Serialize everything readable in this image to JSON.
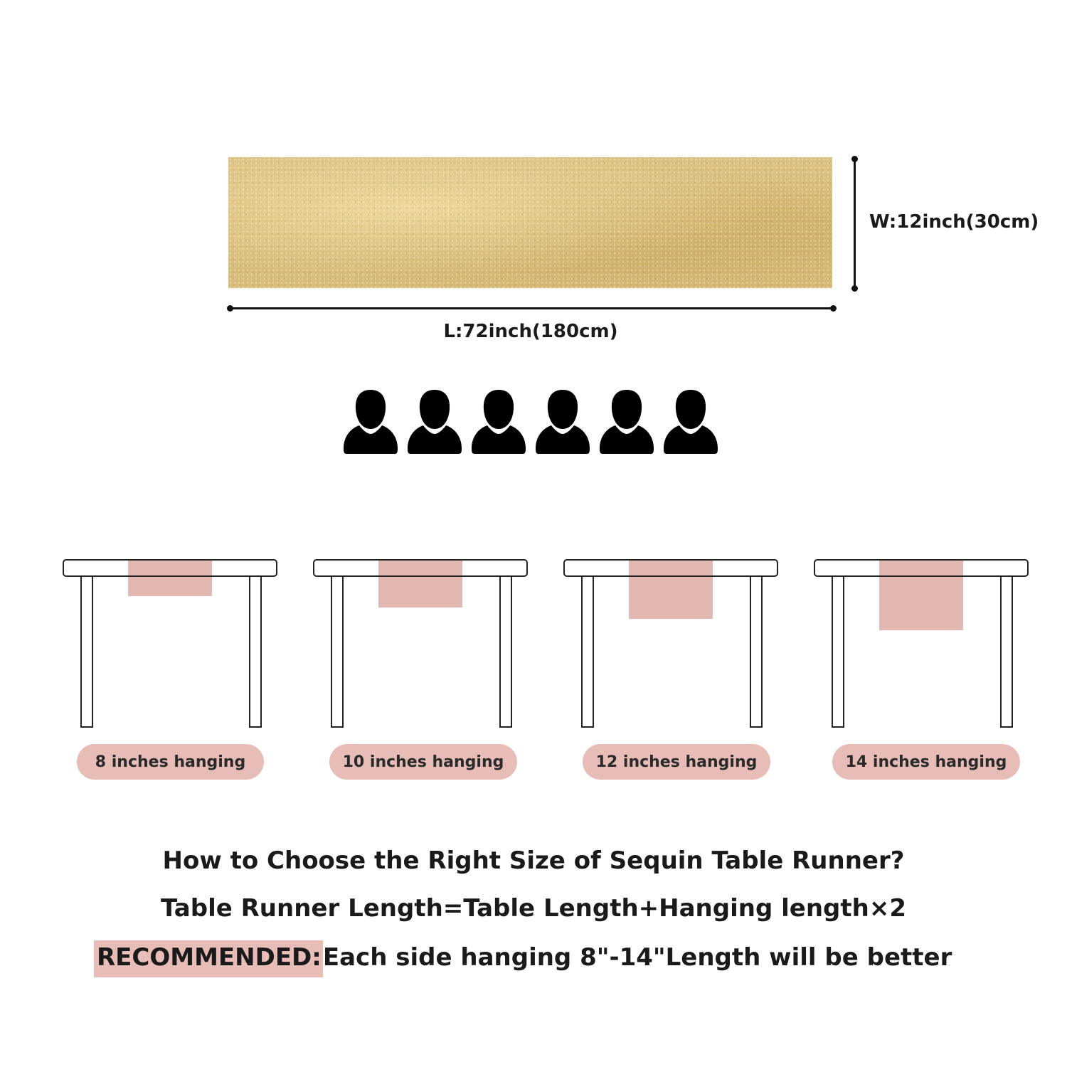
{
  "product": {
    "width_label": "W:12inch(30cm)",
    "length_label": "L:72inch(180cm)",
    "runner_color": "#d8bb78",
    "seats": 6
  },
  "hanging_options": [
    {
      "label": "8 inches hanging",
      "inches": 8
    },
    {
      "label": "10 inches hanging",
      "inches": 10
    },
    {
      "label": "12 inches hanging",
      "inches": 12
    },
    {
      "label": "14 inches hanging",
      "inches": 14
    }
  ],
  "guide": {
    "heading": "How to Choose the Right Size of Sequin Table Runner?",
    "formula": "Table Runner Length=Table Length+Hanging length×2",
    "recommended_tag": "RECOMMENDED:",
    "recommended_text": "Each side hanging 8\"-14\"Length will be better"
  },
  "colors": {
    "accent_pink": "#e8bcb7",
    "drape_pink": "#e3b7b2",
    "icon_black": "#000000"
  }
}
